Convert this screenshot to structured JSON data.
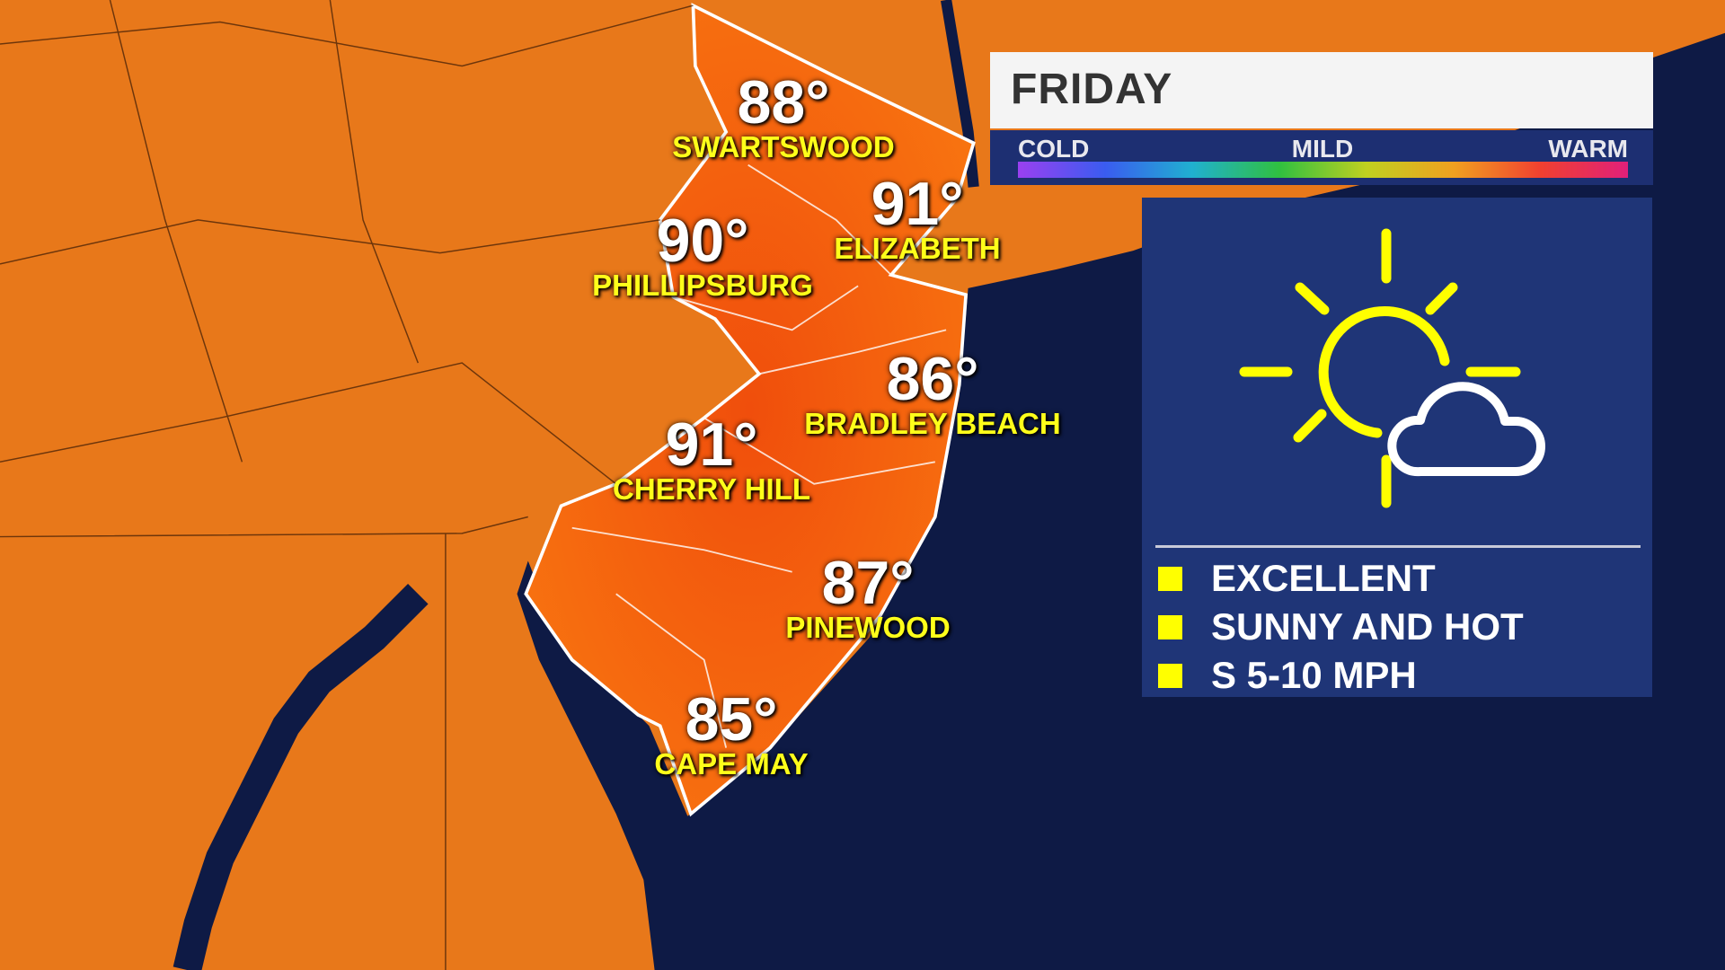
{
  "forecast": {
    "day": "FRIDAY",
    "scale": {
      "cold": "COLD",
      "mild": "MILD",
      "warm": "WARM"
    },
    "icon": "sun-behind-cloud-icon",
    "conditions": [
      "EXCELLENT",
      "SUNNY AND HOT",
      "S 5-10 MPH"
    ]
  },
  "cities": [
    {
      "name": "SWARTSWOOD",
      "temp": "88°"
    },
    {
      "name": "ELIZABETH",
      "temp": "91°"
    },
    {
      "name": "PHILLIPSBURG",
      "temp": "90°"
    },
    {
      "name": "BRADLEY BEACH",
      "temp": "86°"
    },
    {
      "name": "CHERRY HILL",
      "temp": "91°"
    },
    {
      "name": "PINEWOOD",
      "temp": "87°"
    },
    {
      "name": "CAPE MAY",
      "temp": "85°"
    }
  ],
  "colors": {
    "land": "#e8781a",
    "nj": "#f05a10",
    "ocean": "#0e1a45",
    "panel": "#1f3577",
    "accent": "#ffff00"
  }
}
